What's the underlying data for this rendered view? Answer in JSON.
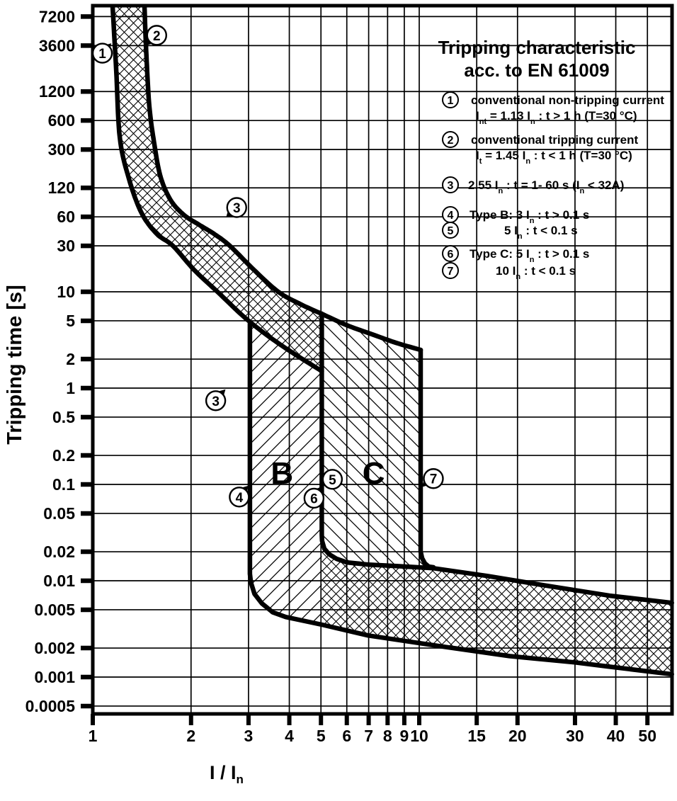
{
  "title": {
    "line1": "Tripping characteristic",
    "line2": "acc. to EN 61009"
  },
  "legend": {
    "items": [
      {
        "num": "1",
        "lines": [
          "conventional non-tripping current",
          "I_{nt}  = 1.13 I_{n} :  t > 1 h   (T=30 °C)"
        ]
      },
      {
        "num": "2",
        "lines": [
          "conventional tripping current",
          "I_{t}  = 1.45 I_{n} :  t < 1 h   (T=30 °C)"
        ]
      },
      {
        "num": "3",
        "lines": [
          "2.55 I_{n}  : t = 1- 60 s (I_{n} < 32A)"
        ]
      },
      {
        "num": "4",
        "lines": [
          "Type B: 3 I_{n} :  t > 0.1 s"
        ]
      },
      {
        "num": "5",
        "lines": [
          "5 I_{n} :  t < 0.1 s"
        ]
      },
      {
        "num": "6",
        "lines": [
          "Type C: 5 I_{n} : t > 0.1 s"
        ]
      },
      {
        "num": "7",
        "lines": [
          "10 I_{n} : t < 0.1 s"
        ]
      }
    ]
  },
  "chart_data": {
    "type": "line",
    "title": "Tripping characteristic acc. to EN 61009",
    "xlabel": "I / I_{n}",
    "ylabel": "Tripping time [s]",
    "x_scale": "log",
    "y_scale": "log",
    "x_range": [
      1,
      59.4
    ],
    "y_range": [
      0.00042,
      9300
    ],
    "x_ticks": [
      1,
      2,
      3,
      4,
      5,
      6,
      7,
      8,
      9,
      10,
      15,
      20,
      30,
      40,
      50
    ],
    "y_ticks": [
      7200,
      3600,
      1200,
      600,
      300,
      120,
      60,
      30,
      10,
      5,
      2,
      1,
      0.5,
      0.2,
      0.1,
      0.05,
      0.02,
      0.01,
      0.005,
      0.002,
      0.001,
      0.0005
    ],
    "grid": true,
    "region_labels": [
      {
        "text": "B",
        "I": 3.8,
        "t": 0.133
      },
      {
        "text": "C",
        "I": 7.25,
        "t": 0.133
      }
    ],
    "series": [
      {
        "name": "curve1",
        "points": [
          [
            1.15,
            9200
          ],
          [
            1.18,
            2000
          ],
          [
            1.21,
            400
          ],
          [
            1.29,
            150
          ],
          [
            1.41,
            66
          ],
          [
            1.57,
            40
          ],
          [
            1.76,
            30
          ],
          [
            2.04,
            17
          ],
          [
            2.41,
            10
          ],
          [
            3.0,
            5.0
          ],
          [
            3.83,
            2.7
          ],
          [
            5.03,
            1.5
          ]
        ]
      },
      {
        "name": "curve2",
        "points": [
          [
            1.44,
            9200
          ],
          [
            1.46,
            2800
          ],
          [
            1.49,
            850
          ],
          [
            1.54,
            360
          ],
          [
            1.61,
            160
          ],
          [
            1.73,
            90
          ],
          [
            1.9,
            63
          ],
          [
            2.11,
            50
          ],
          [
            2.35,
            40
          ],
          [
            2.63,
            30
          ],
          [
            3.11,
            17
          ],
          [
            3.7,
            10
          ],
          [
            4.34,
            7.4
          ],
          [
            5.03,
            5.9
          ]
        ]
      },
      {
        "name": "curve2_ext",
        "points": [
          [
            5.03,
            5.9
          ],
          [
            6.0,
            4.5
          ],
          [
            7.2,
            3.6
          ],
          [
            8.5,
            2.95
          ],
          [
            10.1,
            2.49
          ]
        ]
      },
      {
        "name": "x3_vertical",
        "points": [
          [
            3.03,
            4.68
          ],
          [
            3.03,
            0.0118
          ]
        ]
      },
      {
        "name": "x3_bend_bottom",
        "points": [
          [
            3.03,
            0.0118
          ],
          [
            3.05,
            0.0096
          ],
          [
            3.13,
            0.0073
          ],
          [
            3.3,
            0.0058
          ],
          [
            3.56,
            0.0047
          ],
          [
            3.9,
            0.0042
          ]
        ]
      },
      {
        "name": "bottom_line",
        "points": [
          [
            3.9,
            0.0042
          ],
          [
            5.03,
            0.0035
          ],
          [
            6.98,
            0.0027
          ],
          [
            11.5,
            0.0021
          ],
          [
            18.9,
            0.00165
          ],
          [
            30,
            0.00142
          ],
          [
            38.3,
            0.00128
          ],
          [
            59.4,
            0.00107
          ]
        ]
      },
      {
        "name": "x5_vertical",
        "points": [
          [
            5.03,
            5.93
          ],
          [
            5.03,
            0.03
          ]
        ]
      },
      {
        "name": "band_top",
        "points": [
          [
            5.03,
            0.03
          ],
          [
            5.04,
            0.026
          ],
          [
            5.12,
            0.0215
          ],
          [
            5.3,
            0.0188
          ],
          [
            5.58,
            0.0169
          ],
          [
            6.0,
            0.0155
          ],
          [
            6.98,
            0.0147
          ],
          [
            8.5,
            0.0142
          ],
          [
            11.05,
            0.0135
          ],
          [
            16.2,
            0.0112
          ],
          [
            25,
            0.0088
          ],
          [
            38.3,
            0.007
          ],
          [
            59.4,
            0.0059
          ]
        ]
      },
      {
        "name": "x10_vertical",
        "points": [
          [
            10.1,
            2.49
          ],
          [
            10.1,
            0.0201
          ]
        ]
      },
      {
        "name": "x10_bend",
        "points": [
          [
            10.1,
            0.0201
          ],
          [
            10.2,
            0.0172
          ],
          [
            10.4,
            0.0152
          ],
          [
            10.7,
            0.014
          ],
          [
            11.05,
            0.0138
          ]
        ]
      }
    ],
    "markers": [
      {
        "label": "1",
        "circle": [
          1.07,
          3000
        ],
        "apex": [
          1.14,
          3800
        ],
        "dir": "ne"
      },
      {
        "label": "2",
        "circle": [
          1.57,
          4600
        ],
        "apex": [
          1.45,
          3600
        ],
        "dir": "sw"
      },
      {
        "label": "3",
        "circle": [
          2.76,
          75
        ],
        "apex": [
          2.56,
          59
        ],
        "dir": "sw"
      },
      {
        "label": "3",
        "circle": [
          2.38,
          0.74
        ],
        "apex": [
          2.55,
          0.97
        ],
        "dir": "ne"
      },
      {
        "label": "4",
        "circle": [
          2.81,
          0.074
        ],
        "apex": [
          3.0,
          0.097
        ],
        "dir": "ne"
      },
      {
        "label": "5",
        "circle": [
          5.42,
          0.113
        ],
        "apex": [
          5.06,
          0.096
        ],
        "dir": "sw"
      },
      {
        "label": "6",
        "circle": [
          4.76,
          0.072
        ],
        "apex": [
          5.03,
          0.094
        ],
        "dir": "ne"
      },
      {
        "label": "7",
        "circle": [
          11.05,
          0.115
        ],
        "apex": [
          10.2,
          0.094
        ],
        "dir": "sw"
      }
    ]
  }
}
